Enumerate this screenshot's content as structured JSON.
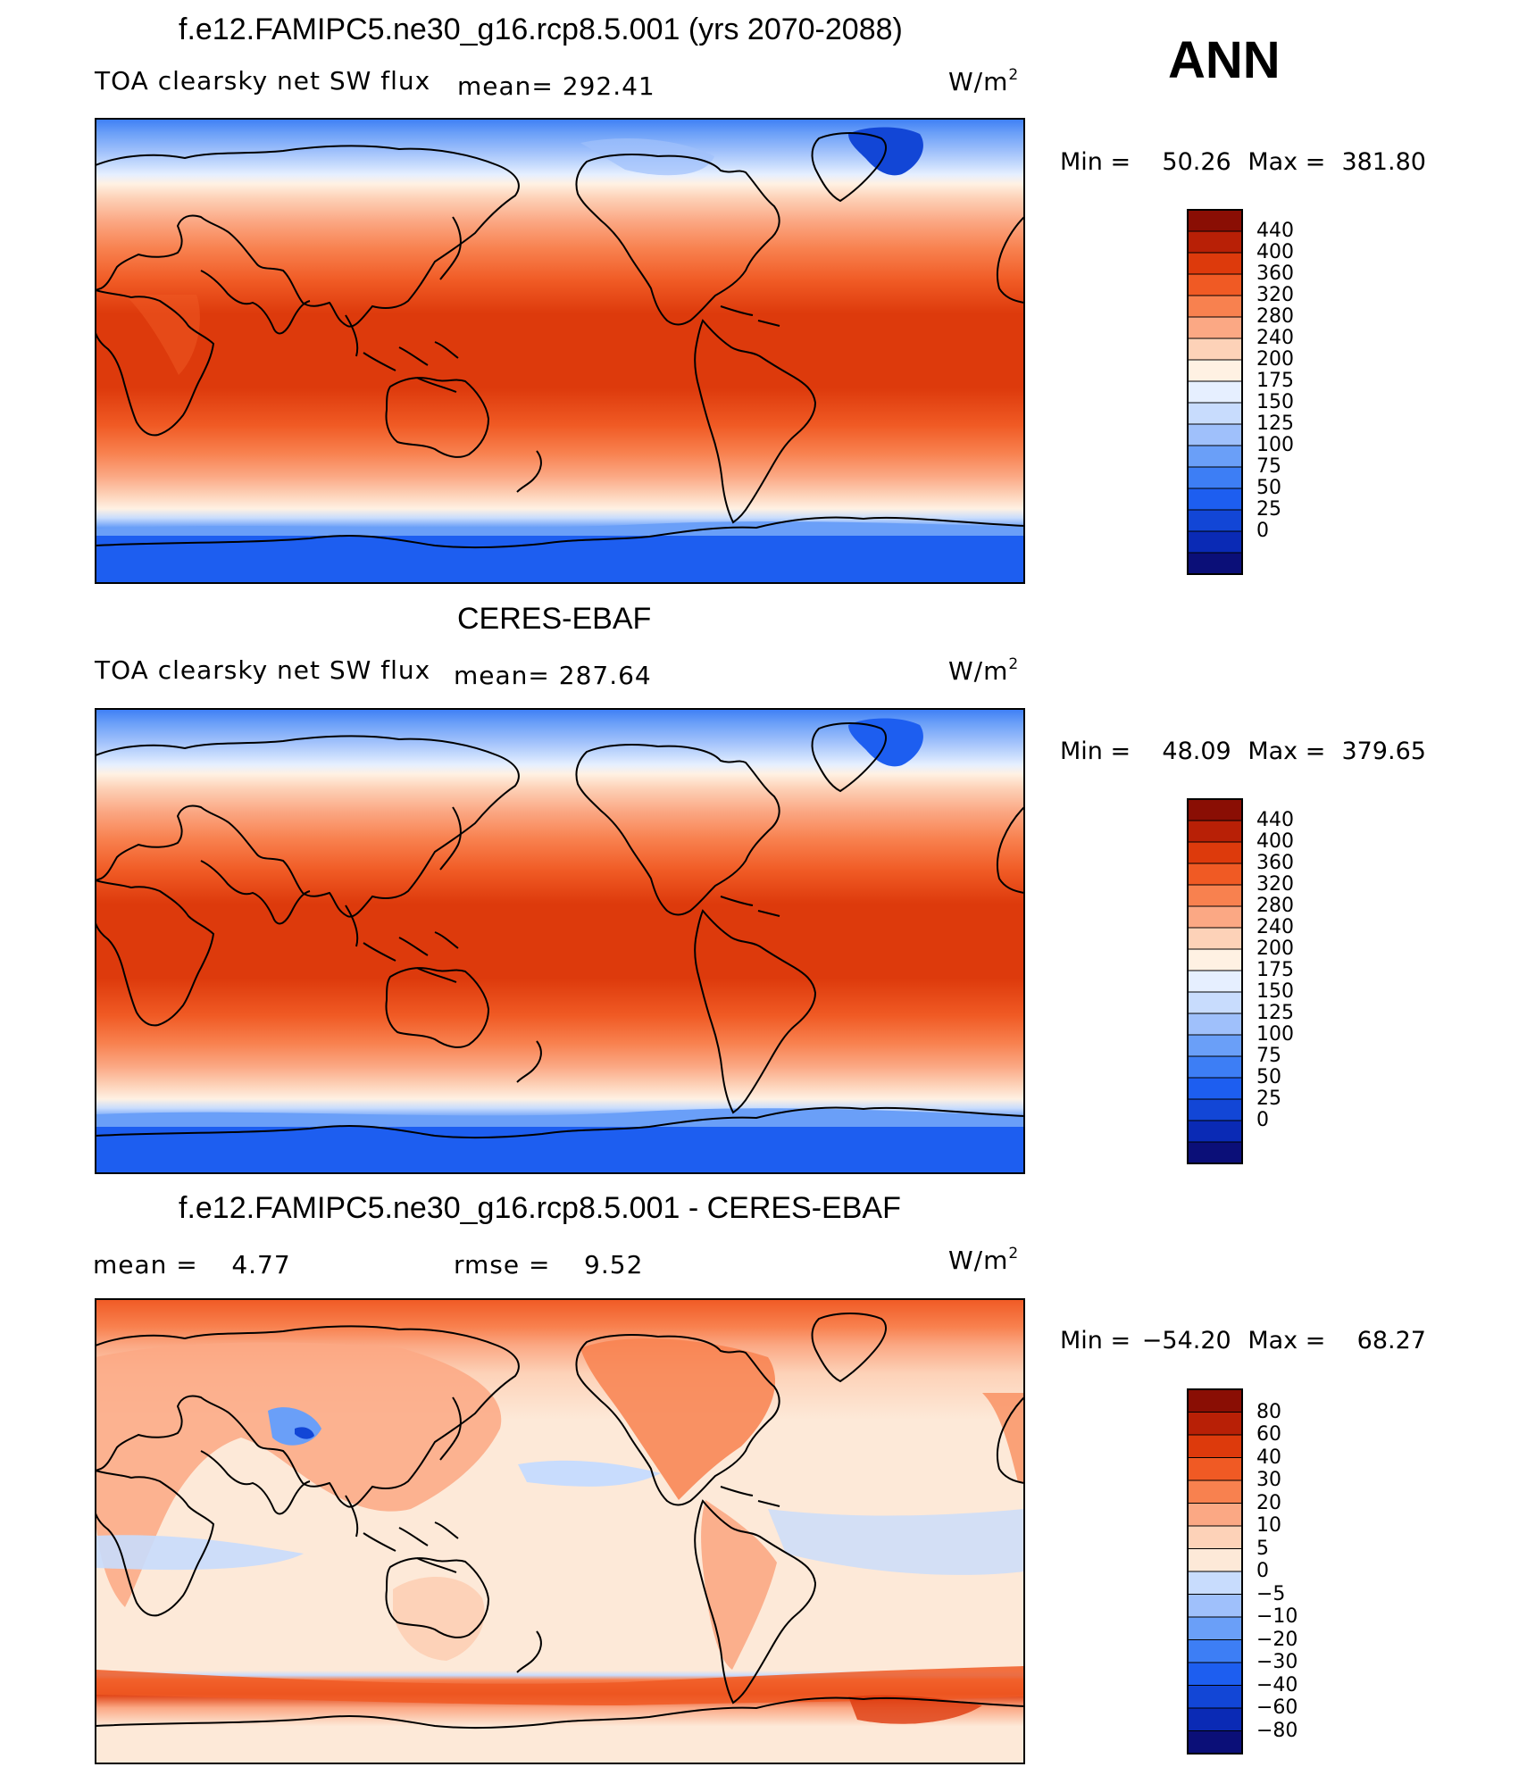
{
  "season": "ANN",
  "colors": {
    "abs_scale": [
      "#0b0f78",
      "#0a2ab5",
      "#1246d6",
      "#1d5ef0",
      "#3d7ef5",
      "#6a9ff8",
      "#9fc0fb",
      "#c8dcfd",
      "#e6efff",
      "#fff1e3",
      "#fdd2b8",
      "#fba884",
      "#f8814f",
      "#f05a24",
      "#dd3a0c",
      "#b82006",
      "#8a0e04"
    ],
    "diff_scale": [
      "#0b0f78",
      "#0a2ab5",
      "#1246d6",
      "#1d5ef0",
      "#3d7ef5",
      "#6a9ff8",
      "#9fc0fb",
      "#c8dcfd",
      "#fde9d8",
      "#fdd2b8",
      "#fba884",
      "#f8814f",
      "#f05a24",
      "#dd3a0c",
      "#b82006",
      "#8a0e04"
    ]
  },
  "panels": [
    {
      "title": "f.e12.FAMIPC5.ne30_g16.rcp8.5.001 (yrs 2070-2088)",
      "variable": "TOA clearsky net SW flux",
      "mean_text": "mean=  292.41",
      "units": "W/m",
      "units_exp": "2",
      "min_label": "Min  =",
      "min_value": "50.26",
      "max_label": "Max  =",
      "max_value": "381.80",
      "colorbar_labels": [
        "440",
        "400",
        "360",
        "320",
        "280",
        "240",
        "200",
        "175",
        "150",
        "125",
        "100",
        "75",
        "50",
        "25",
        "0"
      ]
    },
    {
      "title": "CERES-EBAF",
      "variable": "TOA clearsky net SW flux",
      "mean_text": "mean=  287.64",
      "units": "W/m",
      "units_exp": "2",
      "min_label": "Min  =",
      "min_value": "48.09",
      "max_label": "Max  =",
      "max_value": "379.65",
      "colorbar_labels": [
        "440",
        "400",
        "360",
        "320",
        "280",
        "240",
        "200",
        "175",
        "150",
        "125",
        "100",
        "75",
        "50",
        "25",
        "0"
      ]
    },
    {
      "title": "f.e12.FAMIPC5.ne30_g16.rcp8.5.001 - CERES-EBAF",
      "mean_label": "mean  =",
      "mean_value": "4.77",
      "rmse_label": "rmse  =",
      "rmse_value": "9.52",
      "units": "W/m",
      "units_exp": "2",
      "min_label": "Min  =",
      "min_value": "−54.20",
      "max_label": "Max  =",
      "max_value": "68.27",
      "colorbar_labels": [
        "80",
        "60",
        "40",
        "30",
        "20",
        "10",
        "5",
        "0",
        "−5",
        "−10",
        "−20",
        "−30",
        "−40",
        "−60",
        "−80"
      ]
    }
  ]
}
